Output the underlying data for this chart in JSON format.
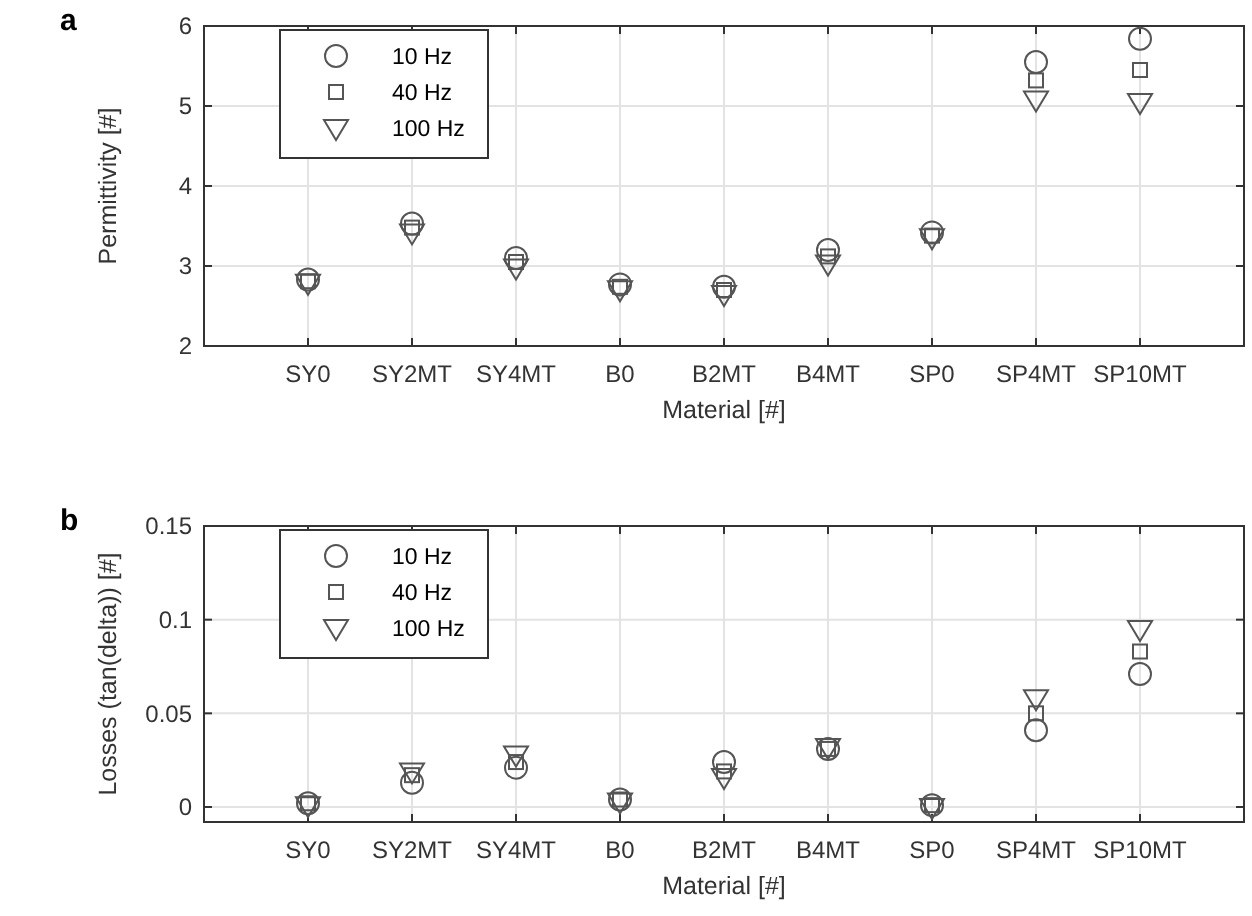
{
  "chart_data": [
    {
      "type": "scatter",
      "title": "a",
      "xlabel": "Material [#]",
      "ylabel": "Permittivity [#]",
      "categories": [
        null,
        "SY0",
        "SY2MT",
        "SY4MT",
        "B0",
        "B2MT",
        "B4MT",
        "SP0",
        "SP4MT",
        "SP10MT",
        null
      ],
      "ylim": [
        2,
        6
      ],
      "yticks": [
        2,
        3,
        4,
        5,
        6
      ],
      "grid": true,
      "legend": "top left",
      "series": [
        {
          "name": "10 Hz",
          "color": "#555555",
          "marker": "circle",
          "values": [
            null,
            2.83,
            3.53,
            3.1,
            2.77,
            2.74,
            3.2,
            3.42,
            5.55,
            5.84,
            null
          ]
        },
        {
          "name": "40 Hz",
          "color": "#555555",
          "marker": "square",
          "values": [
            null,
            2.81,
            3.48,
            3.05,
            2.74,
            2.7,
            3.12,
            3.38,
            5.32,
            5.45,
            null
          ]
        },
        {
          "name": "100 Hz",
          "color": "#555555",
          "marker": "triangle",
          "values": [
            null,
            2.79,
            3.42,
            2.98,
            2.71,
            2.65,
            3.03,
            3.36,
            5.08,
            5.05,
            null
          ]
        }
      ]
    },
    {
      "type": "scatter",
      "title": "b",
      "xlabel": "Material [#]",
      "ylabel": "Losses (tan(delta)) [#]",
      "categories": [
        null,
        "SY0",
        "SY2MT",
        "SY4MT",
        "B0",
        "B2MT",
        "B4MT",
        "SP0",
        "SP4MT",
        "SP10MT",
        null
      ],
      "ylim": [
        -0.008,
        0.15
      ],
      "yticks": [
        0,
        0.05,
        0.1,
        0.15
      ],
      "grid": true,
      "legend": "top left",
      "series": [
        {
          "name": "10 Hz",
          "color": "#555555",
          "marker": "circle",
          "values": [
            null,
            0.002,
            0.013,
            0.021,
            0.004,
            0.024,
            0.031,
            0.001,
            0.041,
            0.071,
            null
          ]
        },
        {
          "name": "40 Hz",
          "color": "#555555",
          "marker": "square",
          "values": [
            null,
            0.002,
            0.017,
            0.024,
            0.004,
            0.019,
            0.031,
            0.001,
            0.05,
            0.083,
            null
          ]
        },
        {
          "name": "100 Hz",
          "color": "#555555",
          "marker": "triangle",
          "values": [
            null,
            0.001,
            0.019,
            0.028,
            0.003,
            0.016,
            0.032,
            0.0,
            0.058,
            0.095,
            null
          ]
        }
      ]
    }
  ]
}
